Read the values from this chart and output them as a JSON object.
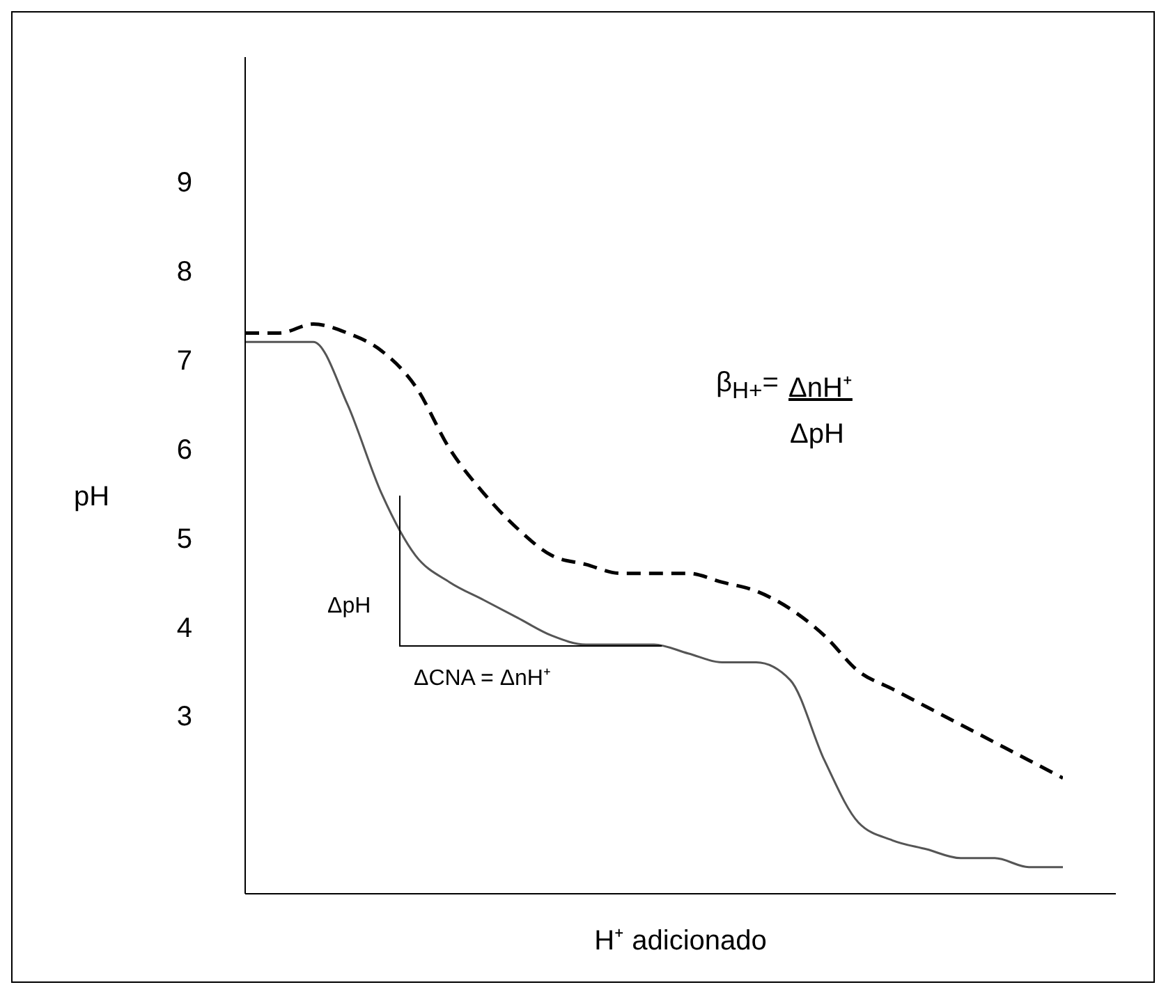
{
  "chart_data": {
    "type": "line",
    "xlabel": "H⁺ adicionado",
    "ylabel": "pH",
    "categories": [
      null,
      null,
      null,
      null,
      null,
      null,
      null,
      null,
      null,
      null,
      null,
      null,
      null,
      null,
      null,
      null,
      null,
      null,
      null,
      null,
      null,
      null,
      null,
      null,
      null
    ],
    "series": [
      {
        "color": "#555555",
        "line_style": "solid",
        "values": [
          7.2,
          7.2,
          7.2,
          6.5,
          5.5,
          4.8,
          4.5,
          4.3,
          4.1,
          3.9,
          3.8,
          3.8,
          3.8,
          3.7,
          3.6,
          3.6,
          3.4,
          2.5,
          1.8,
          1.6,
          1.5,
          1.4,
          1.4,
          1.3,
          1.3
        ]
      },
      {
        "color": "#000000",
        "line_style": "dashed",
        "values": [
          7.3,
          7.3,
          7.4,
          7.3,
          7.1,
          6.7,
          6.0,
          5.5,
          5.1,
          4.8,
          4.7,
          4.6,
          4.6,
          4.6,
          4.5,
          4.4,
          4.2,
          3.9,
          3.5,
          3.3,
          3.1,
          2.9,
          2.7,
          2.5,
          2.3
        ]
      }
    ],
    "ylim": [
      1,
      10.4
    ],
    "yticks": [
      3,
      4,
      5,
      6,
      7,
      8,
      9
    ],
    "grid": false,
    "legend": false,
    "marker": "none",
    "tick_labels": "y",
    "annotations": [
      "ΔpH",
      "ΔCNA = ΔnH⁺",
      "β$_{H+}$=",
      "ΔnH⁺",
      "ΔpH"
    ]
  }
}
